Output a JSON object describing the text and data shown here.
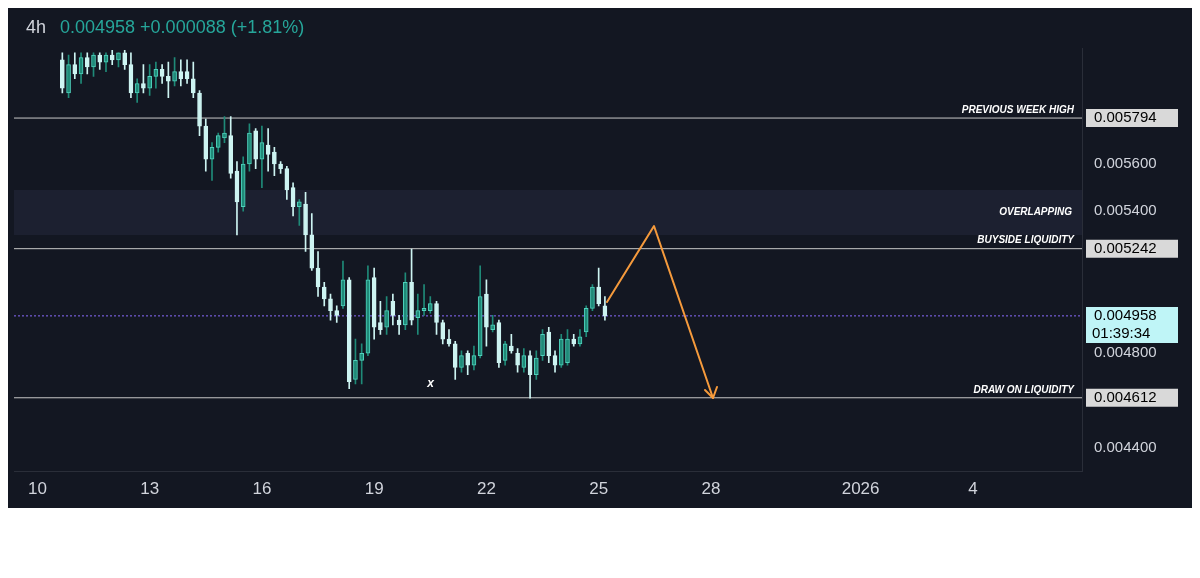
{
  "chart_data": {
    "type": "candlestick",
    "title": "4h",
    "subtitle": "0.004958 +0.000088 (+1.81%)",
    "x": [
      "2025-12-10T16:00",
      "2025-12-10T20:00",
      "2025-12-11T00:00",
      "2025-12-11T04:00",
      "2025-12-11T08:00",
      "2025-12-11T12:00",
      "2025-12-11T16:00",
      "2025-12-11T20:00",
      "2025-12-12T00:00",
      "2025-12-12T04:00",
      "2025-12-12T08:00",
      "2025-12-12T12:00",
      "2025-12-12T16:00",
      "2025-12-12T20:00",
      "2025-12-13T00:00",
      "2025-12-13T04:00",
      "2025-12-13T08:00",
      "2025-12-13T12:00",
      "2025-12-13T16:00",
      "2025-12-13T20:00",
      "2025-12-14T00:00",
      "2025-12-14T04:00",
      "2025-12-14T08:00",
      "2025-12-14T12:00",
      "2025-12-14T16:00",
      "2025-12-14T20:00",
      "2025-12-15T00:00",
      "2025-12-15T04:00",
      "2025-12-15T08:00",
      "2025-12-15T12:00",
      "2025-12-15T16:00",
      "2025-12-15T20:00",
      "2025-12-16T00:00",
      "2025-12-16T04:00",
      "2025-12-16T08:00",
      "2025-12-16T12:00",
      "2025-12-16T16:00",
      "2025-12-16T20:00",
      "2025-12-17T00:00",
      "2025-12-17T04:00",
      "2025-12-17T08:00",
      "2025-12-17T12:00",
      "2025-12-17T16:00",
      "2025-12-17T20:00",
      "2025-12-18T00:00",
      "2025-12-18T04:00",
      "2025-12-18T08:00",
      "2025-12-18T12:00",
      "2025-12-18T16:00",
      "2025-12-18T20:00",
      "2025-12-19T00:00",
      "2025-12-19T04:00",
      "2025-12-19T08:00",
      "2025-12-19T12:00",
      "2025-12-19T16:00",
      "2025-12-19T20:00",
      "2025-12-20T00:00",
      "2025-12-20T04:00",
      "2025-12-20T08:00",
      "2025-12-20T12:00",
      "2025-12-20T16:00",
      "2025-12-20T20:00",
      "2025-12-21T00:00",
      "2025-12-21T04:00",
      "2025-12-21T08:00",
      "2025-12-21T12:00",
      "2025-12-21T16:00",
      "2025-12-21T20:00",
      "2025-12-22T00:00",
      "2025-12-22T04:00",
      "2025-12-22T08:00",
      "2025-12-22T12:00",
      "2025-12-22T16:00",
      "2025-12-22T20:00",
      "2025-12-23T00:00",
      "2025-12-23T04:00",
      "2025-12-23T08:00",
      "2025-12-23T12:00",
      "2025-12-23T16:00",
      "2025-12-23T20:00",
      "2025-12-24T00:00",
      "2025-12-24T04:00",
      "2025-12-24T08:00",
      "2025-12-24T12:00",
      "2025-12-24T16:00",
      "2025-12-24T20:00",
      "2025-12-25T00:00",
      "2025-12-25T04:00"
    ],
    "ohlc": [
      [
        0.00604,
        0.00607,
        0.0059,
        0.00592
      ],
      [
        0.0059,
        0.00606,
        0.00588,
        0.00602
      ],
      [
        0.00602,
        0.00607,
        0.00596,
        0.00598
      ],
      [
        0.00598,
        0.00607,
        0.00594,
        0.00605
      ],
      [
        0.00605,
        0.00607,
        0.00598,
        0.00601
      ],
      [
        0.00601,
        0.00607,
        0.00597,
        0.00606
      ],
      [
        0.00606,
        0.00607,
        0.006,
        0.00603
      ],
      [
        0.00603,
        0.00607,
        0.00599,
        0.00606
      ],
      [
        0.00606,
        0.00608,
        0.00602,
        0.00604
      ],
      [
        0.00604,
        0.00607,
        0.00601,
        0.00607
      ],
      [
        0.00607,
        0.00608,
        0.006,
        0.00602
      ],
      [
        0.00602,
        0.00607,
        0.00588,
        0.0059
      ],
      [
        0.0059,
        0.00596,
        0.00586,
        0.00594
      ],
      [
        0.00594,
        0.00602,
        0.0059,
        0.00592
      ],
      [
        0.00592,
        0.00602,
        0.00589,
        0.00597
      ],
      [
        0.00597,
        0.00603,
        0.00592,
        0.006
      ],
      [
        0.006,
        0.00602,
        0.00594,
        0.00597
      ],
      [
        0.00597,
        0.00603,
        0.00588,
        0.00595
      ],
      [
        0.00595,
        0.00605,
        0.00593,
        0.00599
      ],
      [
        0.00599,
        0.00604,
        0.00593,
        0.00596
      ],
      [
        0.00599,
        0.00604,
        0.00594,
        0.00596
      ],
      [
        0.00596,
        0.00603,
        0.00588,
        0.0059
      ],
      [
        0.0059,
        0.00591,
        0.00572,
        0.00576
      ],
      [
        0.00576,
        0.00579,
        0.00557,
        0.00562
      ],
      [
        0.00562,
        0.00569,
        0.00553,
        0.00567
      ],
      [
        0.00567,
        0.00573,
        0.00565,
        0.00572
      ],
      [
        0.00571,
        0.0058,
        0.00569,
        0.00573
      ],
      [
        0.00572,
        0.0058,
        0.00554,
        0.00556
      ],
      [
        0.00557,
        0.00561,
        0.0053,
        0.00544
      ],
      [
        0.00542,
        0.00563,
        0.0054,
        0.0056
      ],
      [
        0.0056,
        0.00577,
        0.00557,
        0.00573
      ],
      [
        0.00574,
        0.00575,
        0.00558,
        0.00562
      ],
      [
        0.00562,
        0.00576,
        0.0055,
        0.00569
      ],
      [
        0.00568,
        0.00575,
        0.00557,
        0.00564
      ],
      [
        0.00565,
        0.00567,
        0.00555,
        0.0056
      ],
      [
        0.0056,
        0.00561,
        0.00556,
        0.00558
      ],
      [
        0.00558,
        0.00559,
        0.00545,
        0.00549
      ],
      [
        0.0055,
        0.00552,
        0.00538,
        0.00542
      ],
      [
        0.00542,
        0.00545,
        0.00534,
        0.00544
      ],
      [
        0.00543,
        0.00548,
        0.00523,
        0.0053
      ],
      [
        0.0053,
        0.00539,
        0.00515,
        0.00516
      ],
      [
        0.00516,
        0.00523,
        0.00504,
        0.00508
      ],
      [
        0.00508,
        0.0051,
        0.005,
        0.00503
      ],
      [
        0.00503,
        0.00505,
        0.00494,
        0.00498
      ],
      [
        0.00498,
        0.005,
        0.00493,
        0.00496
      ],
      [
        0.005,
        0.00519,
        0.00499,
        0.00511
      ],
      [
        0.00511,
        0.00512,
        0.00465,
        0.00468
      ],
      [
        0.00469,
        0.00486,
        0.00467,
        0.00477
      ],
      [
        0.00477,
        0.00484,
        0.00467,
        0.0048
      ],
      [
        0.0048,
        0.00517,
        0.00479,
        0.00511
      ],
      [
        0.00512,
        0.00516,
        0.00486,
        0.00491
      ],
      [
        0.00493,
        0.00502,
        0.00488,
        0.0049
      ],
      [
        0.00491,
        0.00504,
        0.00488,
        0.00498
      ],
      [
        0.00502,
        0.00505,
        0.00492,
        0.00496
      ],
      [
        0.00494,
        0.00496,
        0.00488,
        0.00492
      ],
      [
        0.00492,
        0.00514,
        0.0049,
        0.0051
      ],
      [
        0.0051,
        0.00524,
        0.00492,
        0.00494
      ],
      [
        0.00495,
        0.00505,
        0.00488,
        0.00498
      ],
      [
        0.00498,
        0.00509,
        0.00496,
        0.00499
      ],
      [
        0.00498,
        0.00504,
        0.00497,
        0.00501
      ],
      [
        0.00501,
        0.00502,
        0.00488,
        0.00493
      ],
      [
        0.00493,
        0.00494,
        0.00484,
        0.00486
      ],
      [
        0.00486,
        0.0049,
        0.00483,
        0.00484
      ],
      [
        0.00484,
        0.00485,
        0.00469,
        0.00474
      ],
      [
        0.00474,
        0.00481,
        0.00472,
        0.00479
      ],
      [
        0.0048,
        0.00481,
        0.00471,
        0.00475
      ],
      [
        0.00475,
        0.00483,
        0.00473,
        0.00479
      ],
      [
        0.00479,
        0.00517,
        0.00478,
        0.00504
      ],
      [
        0.00505,
        0.00511,
        0.00483,
        0.00491
      ],
      [
        0.0049,
        0.00496,
        0.00489,
        0.00492
      ],
      [
        0.00493,
        0.00494,
        0.00474,
        0.00476
      ],
      [
        0.00477,
        0.00485,
        0.00475,
        0.00484
      ],
      [
        0.00483,
        0.00488,
        0.0048,
        0.00481
      ],
      [
        0.0048,
        0.00482,
        0.00472,
        0.00475
      ],
      [
        0.00474,
        0.00482,
        0.00472,
        0.00479
      ],
      [
        0.00479,
        0.00481,
        0.00461,
        0.00471
      ],
      [
        0.00471,
        0.00481,
        0.00469,
        0.00478
      ],
      [
        0.00479,
        0.0049,
        0.00477,
        0.00488
      ],
      [
        0.00489,
        0.00491,
        0.00476,
        0.00479
      ],
      [
        0.00479,
        0.00481,
        0.00472,
        0.00475
      ],
      [
        0.00475,
        0.00488,
        0.00474,
        0.00486
      ],
      [
        0.00476,
        0.0049,
        0.00475,
        0.00486
      ],
      [
        0.00486,
        0.00488,
        0.00483,
        0.00484
      ],
      [
        0.00484,
        0.0049,
        0.00483,
        0.00487
      ],
      [
        0.00489,
        0.005,
        0.00487,
        0.00499
      ],
      [
        0.00499,
        0.00509,
        0.00498,
        0.00508
      ],
      [
        0.00508,
        0.00516,
        0.005,
        0.00501
      ],
      [
        0.005,
        0.00504,
        0.00494,
        0.004958
      ]
    ],
    "xlim": [
      "2025-12-09T09:00",
      "2026-01-06T22:00"
    ],
    "xticks": [
      {
        "value": "2025-12-10",
        "label": "10"
      },
      {
        "value": "2025-12-13",
        "label": "13"
      },
      {
        "value": "2025-12-16",
        "label": "16"
      },
      {
        "value": "2025-12-19",
        "label": "19"
      },
      {
        "value": "2025-12-22",
        "label": "22"
      },
      {
        "value": "2025-12-25",
        "label": "25"
      },
      {
        "value": "2025-12-28",
        "label": "28"
      },
      {
        "value": "2026-01-01",
        "label": "2026"
      },
      {
        "value": "2026-01-04",
        "label": "4"
      }
    ],
    "ylim": [
      0.0043,
      0.00609
    ],
    "yticks": [
      {
        "value": 0.0044,
        "label": "0.004400"
      },
      0.004612,
      {
        "value": 0.0048,
        "label": "0.004800"
      },
      0.004958,
      0.005242,
      {
        "value": 0.0054,
        "label": "0.005400"
      },
      {
        "value": 0.0056,
        "label": "0.005600"
      },
      0.005794
    ],
    "ref_lines": [
      {
        "axis": "y",
        "value": 0.005794,
        "label": "PREVIOUS WEEK HIGH",
        "color": "#c8c8c8"
      },
      {
        "axis": "y",
        "value": 0.005242,
        "label": "BUYSIDE LIQUIDITY",
        "color": "#c8c8c8"
      },
      {
        "axis": "y",
        "value": 0.004958,
        "label": null,
        "color": "#8a6cff",
        "line_style": "dotted"
      },
      {
        "axis": "y",
        "value": 0.004612,
        "label": "DRAW ON LIQUIDITY",
        "color": "#c8c8c8"
      }
    ],
    "bands": [
      {
        "axis": "y",
        "from": 0.0053,
        "to": 0.00549,
        "label": "OVERLAPPING",
        "color": "#1c2030"
      }
    ],
    "annotations": [
      "x",
      "01:39:34"
    ],
    "grid": false,
    "legend": false
  }
}
